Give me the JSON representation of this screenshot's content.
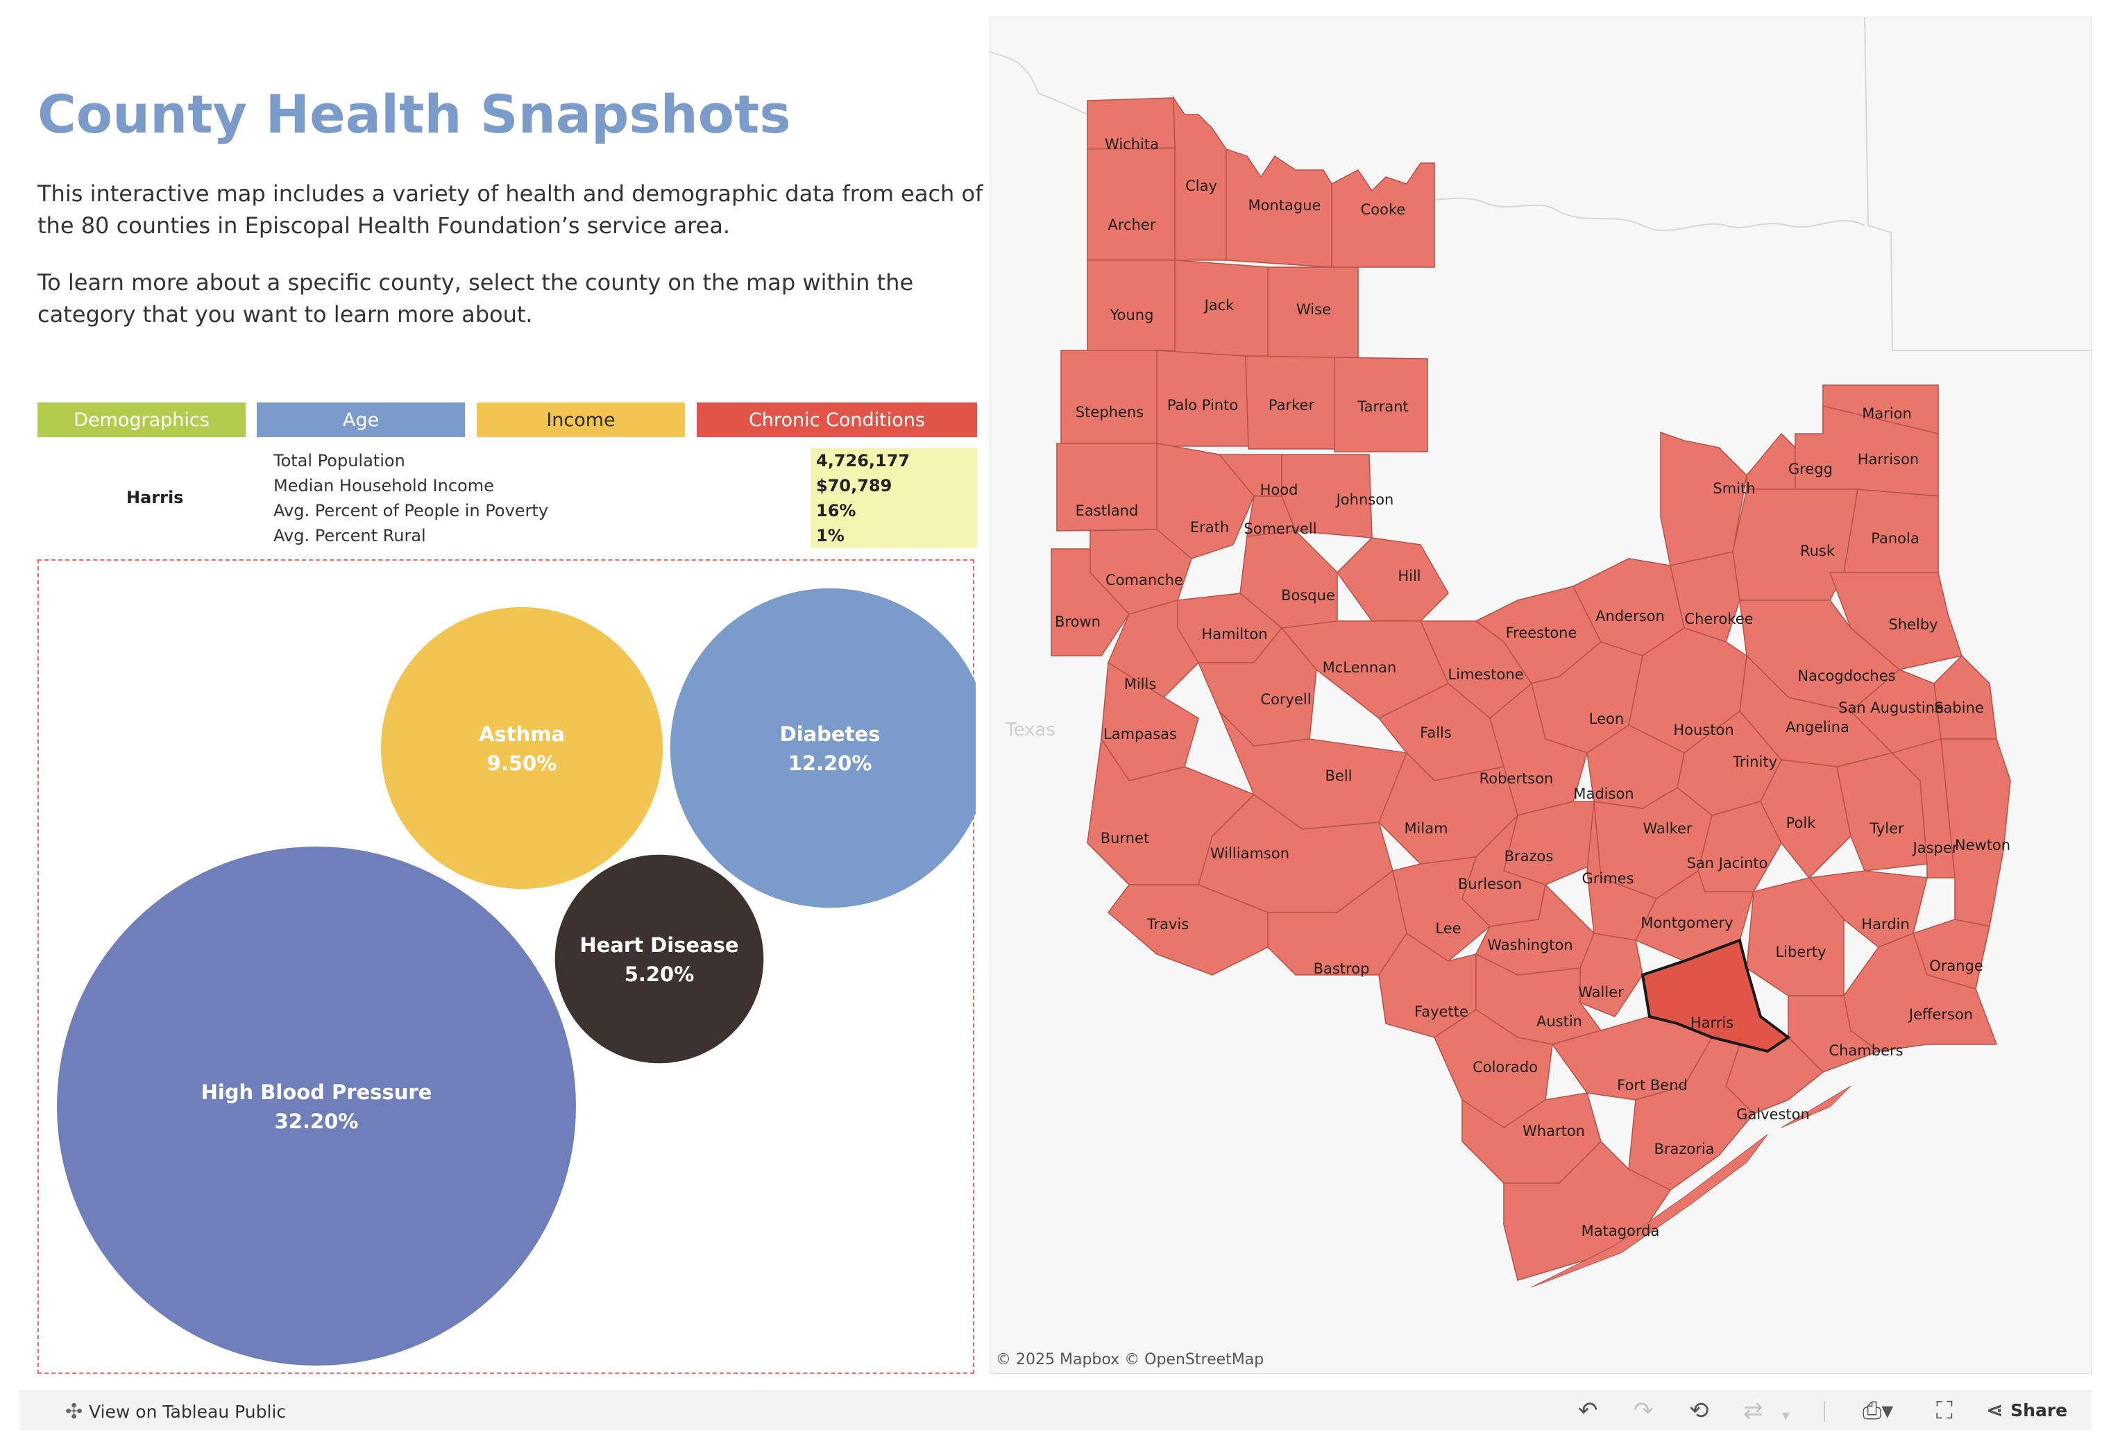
{
  "page": {
    "title": "County Health Snapshots",
    "intro_1": "This interactive map includes a variety of health and demographic data from each of the 80 counties in Episcopal Health Foundation’s service area.",
    "intro_2": "To learn more about a specific county, select the county on the map within the category that you want to learn more about."
  },
  "categories": [
    {
      "label": "Demographics",
      "color": "#b4cc4e"
    },
    {
      "label": "Age",
      "color": "#7b9ccb"
    },
    {
      "label": "Income",
      "color": "#f2c451"
    },
    {
      "label": "Chronic Conditions",
      "color": "#e0544a"
    }
  ],
  "summary": {
    "county": "Harris",
    "rows": [
      {
        "label": "Total Population",
        "value": "4,726,177"
      },
      {
        "label": "Median Household Income",
        "value": "$70,789"
      },
      {
        "label": "Avg. Percent of People in Poverty",
        "value": "16%"
      },
      {
        "label": "Avg. Percent Rural",
        "value": "1%"
      }
    ]
  },
  "chart_data": {
    "type": "bubble",
    "title": "",
    "items": [
      {
        "label": "High Blood Pressure",
        "value": 32.2,
        "display": "32.20%",
        "color": "#6f7fbb"
      },
      {
        "label": "Diabetes",
        "value": 12.2,
        "display": "12.20%",
        "color": "#7b9ccb"
      },
      {
        "label": "Asthma",
        "value": 9.5,
        "display": "9.50%",
        "color": "#f2c451"
      },
      {
        "label": "Heart Disease",
        "value": 5.2,
        "display": "5.20%",
        "color": "#3d3230"
      }
    ]
  },
  "map": {
    "state_label": "Texas",
    "attribution": "© 2025 Mapbox  © OpenStreetMap",
    "selected_county": "Harris",
    "county_fill": "#e8766b",
    "selected_fill": "#e05547",
    "counties": [
      "Wichita",
      "Clay",
      "Montague",
      "Cooke",
      "Archer",
      "Young",
      "Jack",
      "Wise",
      "Stephens",
      "Palo Pinto",
      "Parker",
      "Tarrant",
      "Eastland",
      "Erath",
      "Hood",
      "Somervell",
      "Johnson",
      "Comanche",
      "Brown",
      "Hill",
      "Bosque",
      "Hamilton",
      "Mills",
      "Coryell",
      "McLennan",
      "Limestone",
      "Freestone",
      "Anderson",
      "Cherokee",
      "Smith",
      "Gregg",
      "Marion",
      "Harrison",
      "Panola",
      "Rusk",
      "Shelby",
      "Nacogdoches",
      "San Augustine",
      "Sabine",
      "Angelina",
      "Houston",
      "Leon",
      "Falls",
      "Lampasas",
      "Bell",
      "Robertson",
      "Trinity",
      "Madison",
      "Milam",
      "Burnet",
      "Williamson",
      "Brazos",
      "Walker",
      "San Jacinto",
      "Polk",
      "Tyler",
      "Jasper",
      "Newton",
      "Grimes",
      "Burleson",
      "Travis",
      "Lee",
      "Washington",
      "Montgomery",
      "Liberty",
      "Hardin",
      "Orange",
      "Bastrop",
      "Fayette",
      "Waller",
      "Harris",
      "Austin",
      "Jefferson",
      "Chambers",
      "Colorado",
      "Fort Bend",
      "Galveston",
      "Wharton",
      "Brazoria",
      "Matagorda"
    ]
  },
  "toolbar": {
    "view_on_tableau": "View on Tableau Public",
    "share": "Share",
    "icons": [
      "tableau-icon",
      "undo-icon",
      "redo-icon",
      "revert-icon",
      "refresh-icon",
      "dropdown-icon",
      "download-icon",
      "fullscreen-icon",
      "share-icon"
    ]
  }
}
